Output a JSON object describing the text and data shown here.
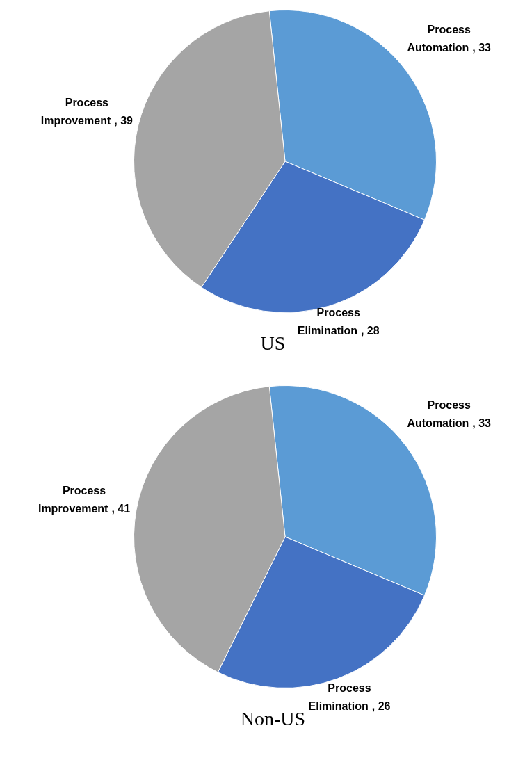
{
  "chart_data": [
    {
      "type": "pie",
      "title": "US",
      "categories": [
        "Process Automation",
        "Process Elimination",
        "Process Improvement"
      ],
      "values": [
        33,
        28,
        39
      ],
      "colors": [
        "#5b9bd5",
        "#4472c4",
        "#a5a5a5"
      ],
      "value_labels": [
        ", 33",
        ", 28",
        ", 39"
      ],
      "legend": false
    },
    {
      "type": "pie",
      "title": "Non-US",
      "categories": [
        "Process Automation",
        "Process Elimination",
        "Process Improvement"
      ],
      "values": [
        33,
        26,
        41
      ],
      "colors": [
        "#5b9bd5",
        "#4472c4",
        "#a5a5a5"
      ],
      "value_labels": [
        ", 33",
        ", 26",
        ", 41"
      ],
      "legend": false
    }
  ]
}
